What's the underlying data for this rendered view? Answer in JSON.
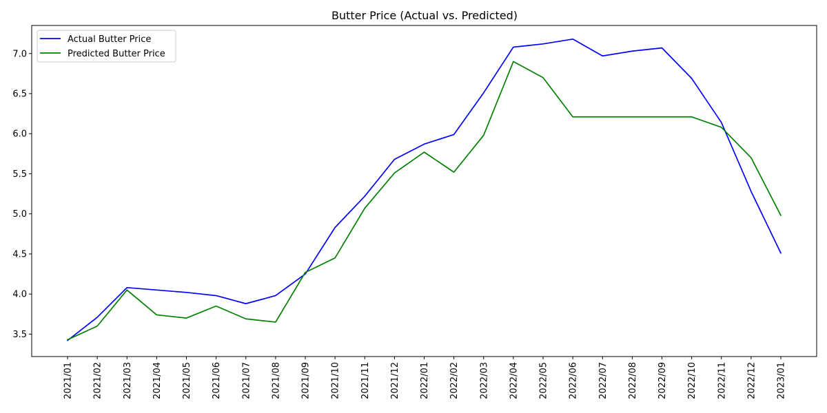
{
  "chart_data": {
    "type": "line",
    "title": "Butter Price (Actual vs. Predicted)",
    "xlabel": "",
    "ylabel": "",
    "categories": [
      "2021/01",
      "2021/02",
      "2021/03",
      "2021/04",
      "2021/05",
      "2021/06",
      "2021/07",
      "2021/08",
      "2021/09",
      "2021/10",
      "2021/11",
      "2021/12",
      "2022/01",
      "2022/02",
      "2022/03",
      "2022/04",
      "2022/05",
      "2022/06",
      "2022/07",
      "2022/08",
      "2022/09",
      "2022/10",
      "2022/11",
      "2022/12",
      "2023/01"
    ],
    "ylim": [
      3.22,
      7.35
    ],
    "yticks": [
      3.5,
      4.0,
      4.5,
      5.0,
      5.5,
      6.0,
      6.5,
      7.0
    ],
    "ytick_labels": [
      "3.5",
      "4.0",
      "4.5",
      "5.0",
      "5.5",
      "6.0",
      "6.5",
      "7.0"
    ],
    "grid": false,
    "legend": "top-left",
    "series": [
      {
        "name": "Actual Butter Price",
        "color": "#0000ff",
        "values": [
          3.42,
          3.71,
          4.08,
          4.05,
          4.02,
          3.98,
          3.88,
          3.98,
          4.25,
          4.83,
          5.22,
          5.68,
          5.87,
          5.99,
          6.51,
          7.08,
          7.12,
          7.18,
          6.97,
          7.03,
          7.07,
          6.69,
          6.14,
          5.28,
          4.51
        ]
      },
      {
        "name": "Predicted Butter Price",
        "color": "#008000",
        "values": [
          3.43,
          3.6,
          4.05,
          3.74,
          3.7,
          3.85,
          3.69,
          3.65,
          4.27,
          4.45,
          5.07,
          5.51,
          5.77,
          5.52,
          5.98,
          6.9,
          6.7,
          6.21,
          6.21,
          6.21,
          6.21,
          6.21,
          6.08,
          5.7,
          4.98
        ]
      }
    ]
  }
}
